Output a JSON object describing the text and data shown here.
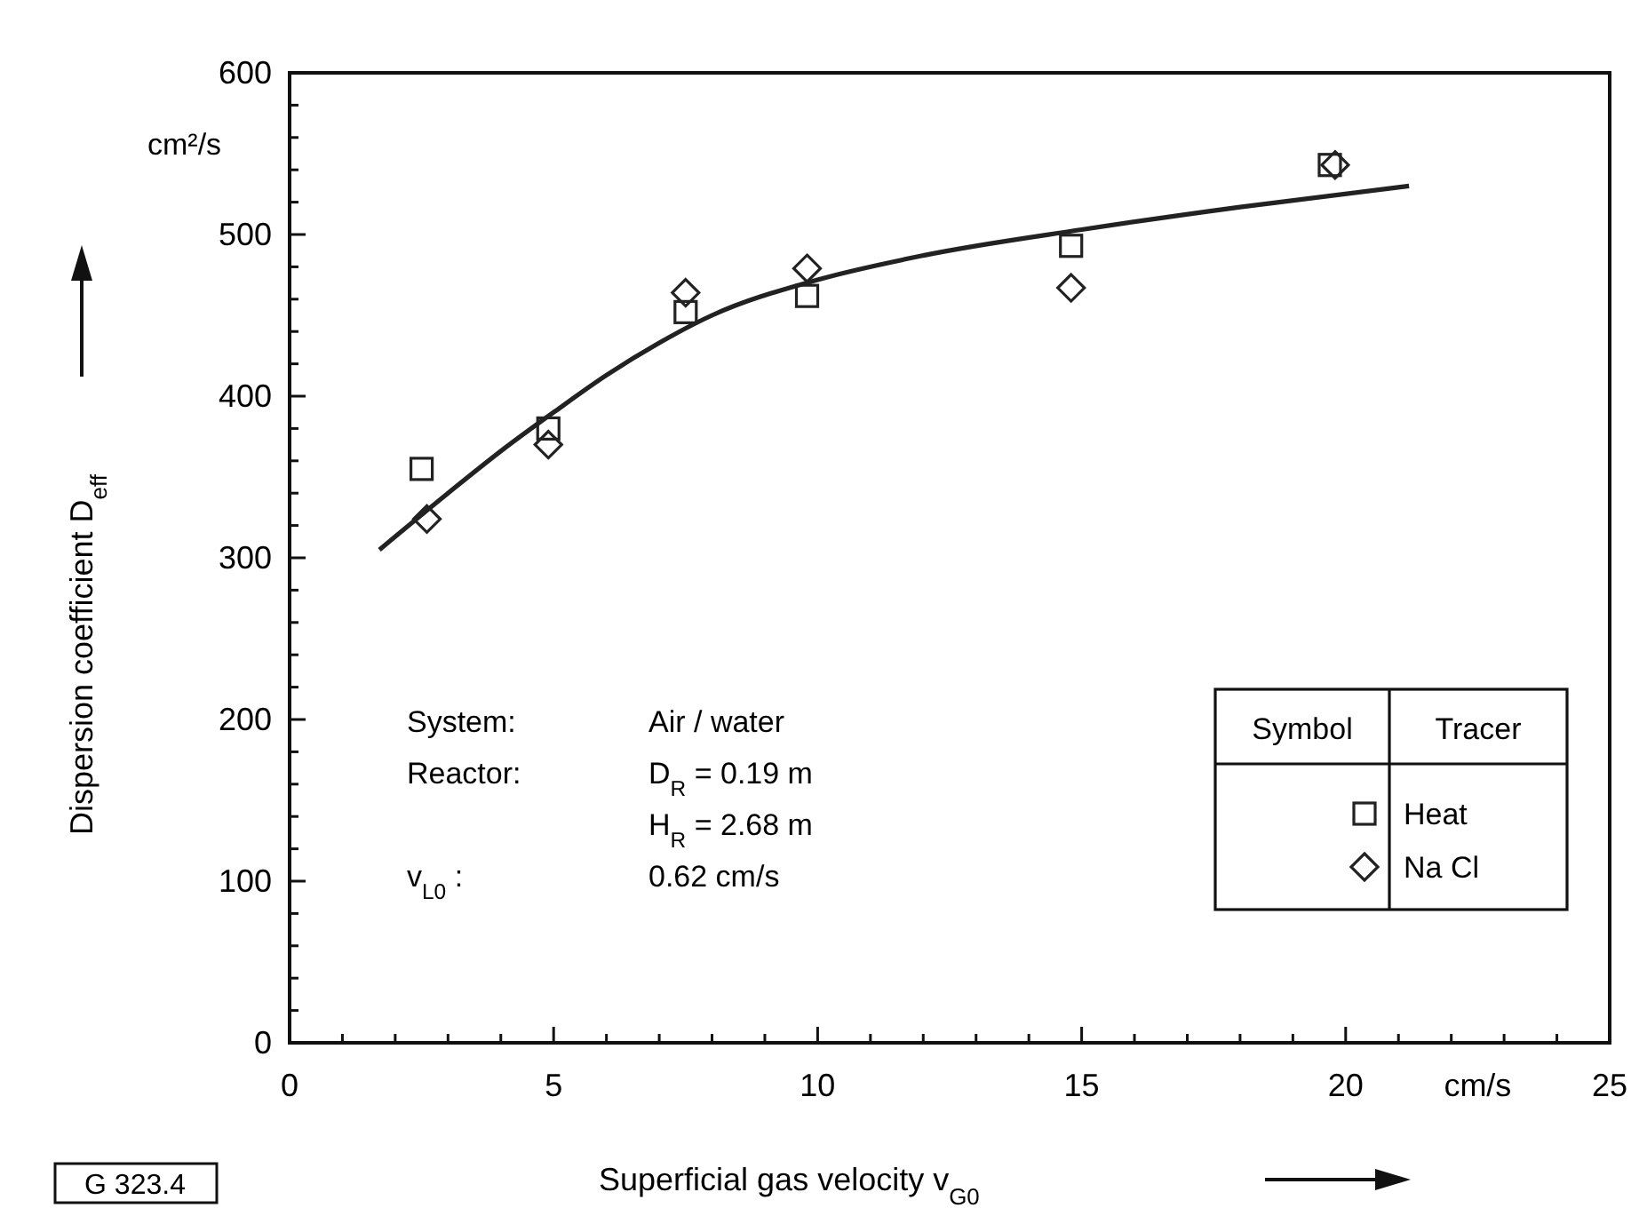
{
  "chart_data": {
    "type": "scatter",
    "xlabel": "Superficial gas velocity  v$_{G0}$",
    "ylabel": "Dispersion coefficient  D$_{eff}$",
    "xlim": [
      0,
      25
    ],
    "ylim": [
      0,
      600
    ],
    "xticks": [
      0,
      {
        "value": 1,
        "label": null
      },
      {
        "value": 2,
        "label": null
      },
      {
        "value": 3,
        "label": null
      },
      {
        "value": 4,
        "label": null
      },
      5,
      {
        "value": 6,
        "label": null
      },
      {
        "value": 7,
        "label": null
      },
      {
        "value": 8,
        "label": null
      },
      {
        "value": 9,
        "label": null
      },
      10,
      {
        "value": 11,
        "label": null
      },
      {
        "value": 12,
        "label": null
      },
      {
        "value": 13,
        "label": null
      },
      {
        "value": 14,
        "label": null
      },
      15,
      {
        "value": 16,
        "label": null
      },
      {
        "value": 17,
        "label": null
      },
      {
        "value": 18,
        "label": null
      },
      {
        "value": 19,
        "label": null
      },
      20,
      {
        "value": 21,
        "label": null
      },
      {
        "value": 22,
        "label": null
      },
      {
        "value": 23,
        "label": null
      },
      {
        "value": 24,
        "label": null
      },
      25
    ],
    "yticks": [
      0,
      {
        "value": 20,
        "label": null
      },
      {
        "value": 40,
        "label": null
      },
      {
        "value": 60,
        "label": null
      },
      {
        "value": 80,
        "label": null
      },
      100,
      {
        "value": 120,
        "label": null
      },
      {
        "value": 140,
        "label": null
      },
      {
        "value": 160,
        "label": null
      },
      {
        "value": 180,
        "label": null
      },
      200,
      {
        "value": 220,
        "label": null
      },
      {
        "value": 240,
        "label": null
      },
      {
        "value": 260,
        "label": null
      },
      {
        "value": 280,
        "label": null
      },
      300,
      {
        "value": 320,
        "label": null
      },
      {
        "value": 340,
        "label": null
      },
      {
        "value": 360,
        "label": null
      },
      {
        "value": 380,
        "label": null
      },
      400,
      {
        "value": 420,
        "label": null
      },
      {
        "value": 440,
        "label": null
      },
      {
        "value": 460,
        "label": null
      },
      {
        "value": 480,
        "label": null
      },
      500,
      {
        "value": 520,
        "label": null
      },
      {
        "value": 540,
        "label": null
      },
      {
        "value": 560,
        "label": null
      },
      {
        "value": 580,
        "label": null
      },
      600
    ],
    "grid": false,
    "legend": "right",
    "legend_title": "Tracer",
    "series": [
      {
        "name": "Heat",
        "marker": "square",
        "color": "#222222",
        "x": [
          2.5,
          4.9,
          7.5,
          9.8,
          14.8,
          19.7
        ],
        "values": [
          355,
          380,
          452,
          462,
          493,
          543
        ]
      },
      {
        "name": "Na Cl",
        "marker": "diamond",
        "color": "#222222",
        "x": [
          2.6,
          4.9,
          7.5,
          9.8,
          14.8,
          19.8
        ],
        "values": [
          324,
          370,
          464,
          479,
          467,
          543
        ]
      },
      {
        "type": "line",
        "marker": "none",
        "line_style": "solid",
        "color": "#222222",
        "x": [
          1.7,
          3,
          4,
          5,
          6,
          7,
          8,
          10,
          12,
          15,
          18,
          21.2
        ],
        "values": [
          305,
          340,
          366,
          390,
          413,
          433,
          450,
          472,
          487,
          503,
          517,
          530
        ]
      }
    ],
    "annotations": [
      "cm²/s",
      "cm/s",
      "System:",
      "Air / water",
      "Reactor:",
      "D$_{R}$ = 0.19 m",
      "H$_{R}$ = 2.68 m",
      "v$_{L0}$ :",
      "0.62 cm/s",
      "Symbol",
      "G 323.4"
    ]
  }
}
